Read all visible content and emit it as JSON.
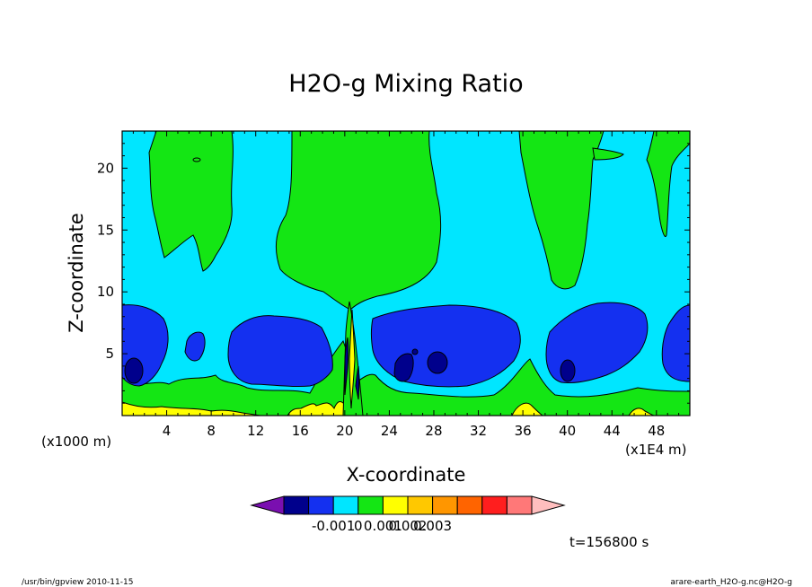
{
  "chart_data": {
    "type": "heatmap",
    "title": "H2O-g Mixing Ratio",
    "xlabel": "X-coordinate",
    "ylabel": "Z-coordinate",
    "x_unit_note": "(x1E4 m)",
    "y_unit_note": "(x1000 m)",
    "xlim": [
      0,
      51
    ],
    "ylim": [
      0,
      23
    ],
    "x_ticks": [
      "4",
      "8",
      "12",
      "16",
      "20",
      "24",
      "28",
      "32",
      "36",
      "40",
      "44",
      "48"
    ],
    "y_ticks": [
      "5",
      "10",
      "15",
      "20"
    ],
    "legend": {
      "colors": [
        "#7a0fb0",
        "#00008c",
        "#1430f0",
        "#00e6ff",
        "#14e614",
        "#ffff00",
        "#ffc800",
        "#ff9600",
        "#ff6400",
        "#ff1e1e",
        "#ff7878",
        "#ffbebe"
      ],
      "labels": [
        "-0.001",
        "0",
        "0.001",
        "0.002",
        "0.003"
      ]
    },
    "time_label": "t=156800 s",
    "footer_left": "/usr/bin/gpview  2010-11-15",
    "footer_right": "arare-earth_H2O-g.nc@H2O-g"
  }
}
